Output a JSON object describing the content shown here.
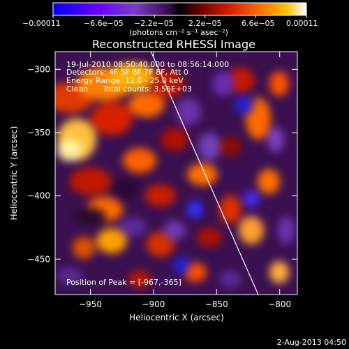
{
  "chart_data": {
    "type": "heatmap",
    "title": "Reconstructed RHESSI Image",
    "xlabel": "Heliocentric X (arcsec)",
    "ylabel": "Heliocentric Y (arcsec)",
    "xlim": [
      -978,
      -786
    ],
    "ylim": [
      -478,
      -286
    ],
    "x_ticks": [
      -950,
      -900,
      -850,
      -800
    ],
    "x_tick_labels": [
      "−950",
      "−900",
      "−850",
      "−800"
    ],
    "y_ticks": [
      -450,
      -400,
      -350,
      -300
    ],
    "y_tick_labels": [
      "−450",
      "−400",
      "−350",
      "−300"
    ],
    "colorbar": {
      "range": [
        -0.00011,
        0.00011
      ],
      "tick_labels": [
        "−0.00011",
        "−6.6e−05",
        "−2.2e−05",
        "2.2e−05",
        "6.6e−05",
        "0.00011"
      ],
      "unit_label": "(photons cm⁻² s⁻¹ asec⁻²)",
      "colors": [
        "#0000ff",
        "#6a00ff",
        "#7a3cc8",
        "#4a1a66",
        "#000000",
        "#6a0000",
        "#cc1a00",
        "#ff6a00",
        "#ffc000",
        "#ffffff"
      ]
    },
    "annotations": {
      "time_range": "19-Jul-2010 08:50:40.000 to 08:56:14.000",
      "detectors": "Detectors: 4F 5F 6F 7F 8F, Att 0",
      "energy": "Energy Range: 12.0 - 25.0 keV",
      "method_counts": "Clean      Total counts: 3.56E+03",
      "peak": "Position of Peak = [-967,-365]"
    },
    "limb_line": [
      [
        -902,
        -286
      ],
      [
        -817,
        -478
      ]
    ],
    "grid": false
  },
  "footer": {
    "date": "2-Aug-2013 04:50"
  }
}
